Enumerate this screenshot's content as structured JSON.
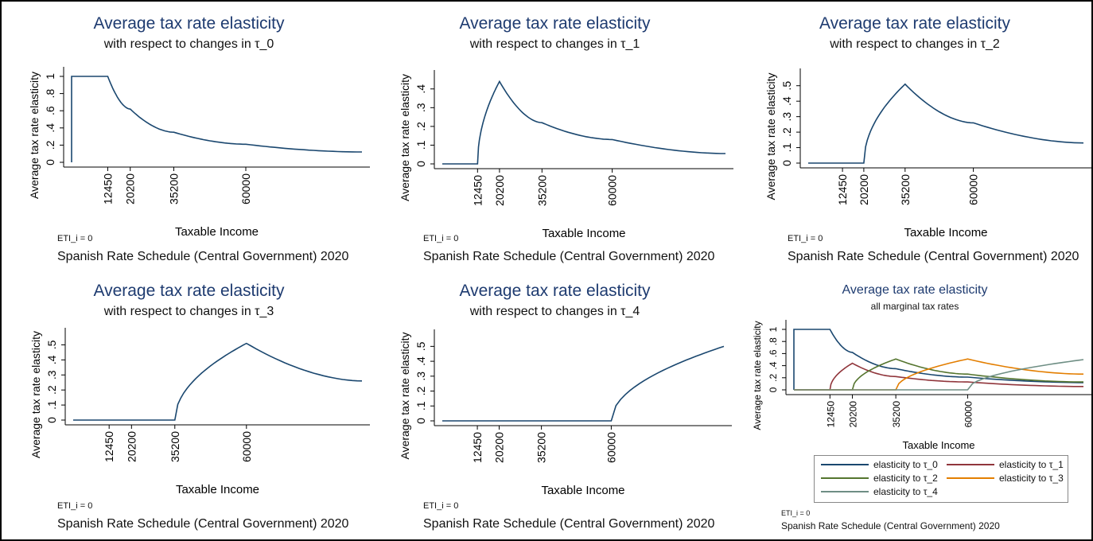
{
  "chart_data": [
    {
      "type": "line",
      "title": "Average tax rate elasticity",
      "subtitle": "with respect to changes in τ_0",
      "xlabel": "Taxable Income",
      "ylabel": "Average tax rate elasticity",
      "ylim": [
        0,
        1
      ],
      "yticks": [
        "0",
        ".2",
        ".4",
        ".6",
        ".8",
        "1"
      ],
      "xticks": [
        12450,
        20200,
        35200,
        60000
      ],
      "xlim": [
        0,
        100000
      ],
      "note_eti": "ETI_i = 0",
      "note_schedule": "Spanish Rate Schedule (Central Government) 2020",
      "color": "#1a476f",
      "series": [
        {
          "x": [
            0,
            0,
            12450,
            20200,
            35200,
            60000,
            100000
          ],
          "values": [
            0,
            1,
            1,
            0.62,
            0.35,
            0.21,
            0.12
          ]
        }
      ]
    },
    {
      "type": "line",
      "title": "Average tax rate elasticity",
      "subtitle": "with respect to changes in τ_1",
      "xlabel": "Taxable Income",
      "ylabel": "Average tax rate elasticity",
      "ylim": [
        0,
        0.45
      ],
      "yticks": [
        "0",
        ".1",
        ".2",
        ".3",
        ".4"
      ],
      "xticks": [
        12450,
        20200,
        35200,
        60000
      ],
      "xlim": [
        0,
        100000
      ],
      "note_eti": "ETI_i = 0",
      "note_schedule": "Spanish Rate Schedule (Central Government) 2020",
      "color": "#1a476f",
      "series": [
        {
          "x": [
            0,
            12450,
            20200,
            35200,
            60000,
            100000
          ],
          "values": [
            0,
            0,
            0.44,
            0.22,
            0.13,
            0.055
          ]
        }
      ]
    },
    {
      "type": "line",
      "title": "Average tax rate elasticity",
      "subtitle": "with respect to changes in τ_2",
      "xlabel": "Taxable Income",
      "ylabel": "Average tax rate elasticity",
      "ylim": [
        0,
        0.55
      ],
      "yticks": [
        "0",
        ".1",
        ".2",
        ".3",
        ".4",
        ".5"
      ],
      "xticks": [
        12450,
        20200,
        35200,
        60000
      ],
      "xlim": [
        0,
        100000
      ],
      "note_eti": "ETI_i = 0",
      "note_schedule": "Spanish Rate Schedule (Central Government) 2020",
      "color": "#1a476f",
      "series": [
        {
          "x": [
            0,
            20200,
            35200,
            60000,
            100000
          ],
          "values": [
            0,
            0,
            0.51,
            0.26,
            0.13
          ]
        }
      ]
    },
    {
      "type": "line",
      "title": "Average tax rate elasticity",
      "subtitle": "with respect to changes in τ_3",
      "xlabel": "Taxable Income",
      "ylabel": "Average tax rate elasticity",
      "ylim": [
        0,
        0.55
      ],
      "yticks": [
        "0",
        ".1",
        ".2",
        ".3",
        ".4",
        ".5"
      ],
      "xticks": [
        12450,
        20200,
        35200,
        60000
      ],
      "xlim": [
        0,
        100000
      ],
      "note_eti": "ETI_i = 0",
      "note_schedule": "Spanish Rate Schedule (Central Government) 2020",
      "color": "#1a476f",
      "series": [
        {
          "x": [
            0,
            35200,
            60000,
            100000
          ],
          "values": [
            0,
            0,
            0.51,
            0.26
          ]
        }
      ]
    },
    {
      "type": "line",
      "title": "Average tax rate elasticity",
      "subtitle": "with respect to changes in τ_4",
      "xlabel": "Taxable Income",
      "ylabel": "Average tax rate elasticity",
      "ylim": [
        0,
        0.55
      ],
      "yticks": [
        "0",
        ".1",
        ".2",
        ".3",
        ".4",
        ".5"
      ],
      "xticks": [
        12450,
        20200,
        35200,
        60000
      ],
      "xlim": [
        0,
        100000
      ],
      "note_eti": "ETI_i = 0",
      "note_schedule": "Spanish Rate Schedule (Central Government) 2020",
      "color": "#1a476f",
      "series": [
        {
          "x": [
            0,
            60000,
            100000
          ],
          "values": [
            0,
            0,
            0.5
          ]
        }
      ]
    },
    {
      "type": "line",
      "title": "Average tax rate elasticity",
      "subtitle": "all marginal tax rates",
      "xlabel": "Taxable Income",
      "ylabel": "Average tax rate elasticity",
      "ylim": [
        0,
        1
      ],
      "yticks": [
        "0",
        ".2",
        ".4",
        ".6",
        ".8",
        "1"
      ],
      "xticks": [
        12450,
        20200,
        35200,
        60000
      ],
      "xlim": [
        0,
        100000
      ],
      "note_eti": "ETI_i = 0",
      "note_schedule": "Spanish Rate Schedule (Central Government) 2020",
      "legend_position": "bottom",
      "series": [
        {
          "name": "elasticity to τ_0",
          "color": "#1a476f",
          "x": [
            0,
            0,
            12450,
            20200,
            35200,
            60000,
            100000
          ],
          "values": [
            0,
            1,
            1,
            0.62,
            0.35,
            0.21,
            0.12
          ]
        },
        {
          "name": "elasticity to τ_1",
          "color": "#90353b",
          "x": [
            0,
            12450,
            20200,
            35200,
            60000,
            100000
          ],
          "values": [
            0,
            0,
            0.44,
            0.22,
            0.13,
            0.055
          ]
        },
        {
          "name": "elasticity to τ_2",
          "color": "#55752f",
          "x": [
            0,
            20200,
            35200,
            60000,
            100000
          ],
          "values": [
            0,
            0,
            0.51,
            0.26,
            0.13
          ]
        },
        {
          "name": "elasticity to τ_3",
          "color": "#e37e00",
          "x": [
            0,
            35200,
            60000,
            100000
          ],
          "values": [
            0,
            0,
            0.51,
            0.26
          ]
        },
        {
          "name": "elasticity to τ_4",
          "color": "#6e8e84",
          "x": [
            0,
            60000,
            100000
          ],
          "values": [
            0,
            0,
            0.5
          ]
        }
      ]
    }
  ]
}
